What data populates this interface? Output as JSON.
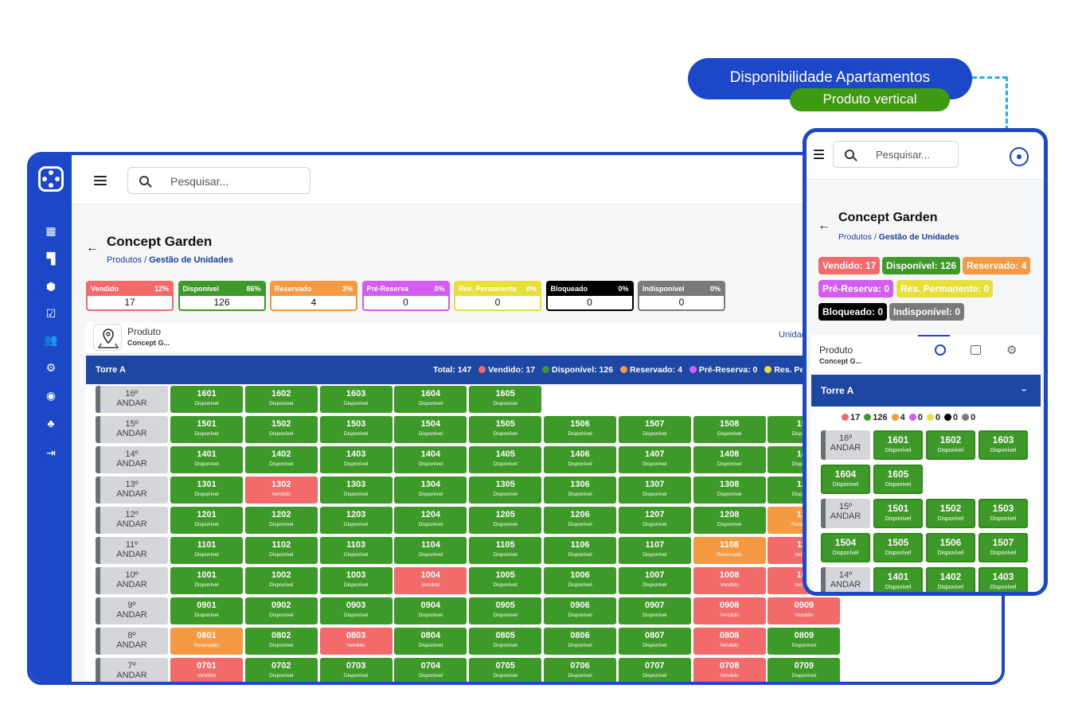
{
  "callout": {
    "title": "Disponibilidade Apartamentos",
    "subtitle": "Produto vertical"
  },
  "colors": {
    "brand": "#1d47c9",
    "header_band": "#1d47a3",
    "vendido": "#f26a6a",
    "disponivel": "#3e9a28",
    "reservado": "#f59a42",
    "pre_reserva": "#d45cf0",
    "res_permanente": "#e8e03a",
    "bloqueado": "#000000",
    "indisponivel": "#7a7a7a"
  },
  "desktop": {
    "search_placeholder": "Pesquisar...",
    "title": "Concept Garden",
    "breadcrumb": {
      "root": "Produtos",
      "sep": "/",
      "current": "Gestão de Unidades"
    },
    "stats": [
      {
        "label": "Vendido",
        "pct": "12%",
        "value": "17",
        "key": "vendido"
      },
      {
        "label": "Disponível",
        "pct": "86%",
        "value": "126",
        "key": "disponivel"
      },
      {
        "label": "Reservado",
        "pct": "3%",
        "value": "4",
        "key": "reservado"
      },
      {
        "label": "Pré-Reserva",
        "pct": "0%",
        "value": "0",
        "key": "pre_reserva"
      },
      {
        "label": "Res. Permanente",
        "pct": "0%",
        "value": "0",
        "key": "res_permanente"
      },
      {
        "label": "Bloqueado",
        "pct": "0%",
        "value": "0",
        "key": "bloqueado"
      },
      {
        "label": "Indisponível",
        "pct": "0%",
        "value": "0",
        "key": "indisponivel"
      }
    ],
    "product_label": "Produto",
    "product_name": "Concept G...",
    "units_tab": "Unidad",
    "tower": "Torre A",
    "summary": {
      "total": "Total: 147",
      "vendido": "Vendido: 17",
      "disponivel": "Disponível: 126",
      "reservado": "Reservado: 4",
      "pre_reserva": "Pré-Reserva: 0",
      "res_permanente": "Res. Perman"
    },
    "floor_word": "ANDAR",
    "floors": [
      {
        "label": "16º",
        "units": [
          [
            "1601",
            "d"
          ],
          [
            "1602",
            "d"
          ],
          [
            "1603",
            "d"
          ],
          [
            "1604",
            "d"
          ],
          [
            "1605",
            "d"
          ]
        ]
      },
      {
        "label": "15º",
        "units": [
          [
            "1501",
            "d"
          ],
          [
            "1502",
            "d"
          ],
          [
            "1503",
            "d"
          ],
          [
            "1504",
            "d"
          ],
          [
            "1505",
            "d"
          ],
          [
            "1506",
            "d"
          ],
          [
            "1507",
            "d"
          ],
          [
            "1508",
            "d"
          ],
          [
            "150",
            "d"
          ]
        ]
      },
      {
        "label": "14º",
        "units": [
          [
            "1401",
            "d"
          ],
          [
            "1402",
            "d"
          ],
          [
            "1403",
            "d"
          ],
          [
            "1404",
            "d"
          ],
          [
            "1405",
            "d"
          ],
          [
            "1406",
            "d"
          ],
          [
            "1407",
            "d"
          ],
          [
            "1408",
            "d"
          ],
          [
            "140",
            "d"
          ]
        ]
      },
      {
        "label": "13º",
        "units": [
          [
            "1301",
            "d"
          ],
          [
            "1302",
            "v"
          ],
          [
            "1303",
            "d"
          ],
          [
            "1304",
            "d"
          ],
          [
            "1305",
            "d"
          ],
          [
            "1306",
            "d"
          ],
          [
            "1307",
            "d"
          ],
          [
            "1308",
            "d"
          ],
          [
            "130",
            "d"
          ]
        ]
      },
      {
        "label": "12º",
        "units": [
          [
            "1201",
            "d"
          ],
          [
            "1202",
            "d"
          ],
          [
            "1203",
            "d"
          ],
          [
            "1204",
            "d"
          ],
          [
            "1205",
            "d"
          ],
          [
            "1206",
            "d"
          ],
          [
            "1207",
            "d"
          ],
          [
            "1208",
            "d"
          ],
          [
            "120",
            "r"
          ]
        ]
      },
      {
        "label": "11º",
        "units": [
          [
            "1101",
            "d"
          ],
          [
            "1102",
            "d"
          ],
          [
            "1103",
            "d"
          ],
          [
            "1104",
            "d"
          ],
          [
            "1105",
            "d"
          ],
          [
            "1106",
            "d"
          ],
          [
            "1107",
            "d"
          ],
          [
            "1108",
            "r"
          ],
          [
            "110",
            "v"
          ]
        ]
      },
      {
        "label": "10º",
        "units": [
          [
            "1001",
            "d"
          ],
          [
            "1002",
            "d"
          ],
          [
            "1003",
            "d"
          ],
          [
            "1004",
            "v"
          ],
          [
            "1005",
            "d"
          ],
          [
            "1006",
            "d"
          ],
          [
            "1007",
            "d"
          ],
          [
            "1008",
            "v"
          ],
          [
            "100",
            "v"
          ]
        ]
      },
      {
        "label": "9º",
        "units": [
          [
            "0901",
            "d"
          ],
          [
            "0902",
            "d"
          ],
          [
            "0903",
            "d"
          ],
          [
            "0904",
            "d"
          ],
          [
            "0905",
            "d"
          ],
          [
            "0906",
            "d"
          ],
          [
            "0907",
            "d"
          ],
          [
            "0908",
            "v"
          ],
          [
            "0909",
            "v"
          ]
        ]
      },
      {
        "label": "8º",
        "units": [
          [
            "0801",
            "r"
          ],
          [
            "0802",
            "d"
          ],
          [
            "0803",
            "v"
          ],
          [
            "0804",
            "d"
          ],
          [
            "0805",
            "d"
          ],
          [
            "0806",
            "d"
          ],
          [
            "0807",
            "d"
          ],
          [
            "0808",
            "v"
          ],
          [
            "0809",
            "d"
          ]
        ]
      },
      {
        "label": "7º",
        "units": [
          [
            "0701",
            "v"
          ],
          [
            "0702",
            "d"
          ],
          [
            "0703",
            "d"
          ],
          [
            "0704",
            "d"
          ],
          [
            "0705",
            "d"
          ],
          [
            "0706",
            "d"
          ],
          [
            "0707",
            "d"
          ],
          [
            "0708",
            "v"
          ],
          [
            "0709",
            "d"
          ]
        ]
      }
    ]
  },
  "status_text": {
    "d": "Disponível",
    "v": "Vendido",
    "r": "Reservado"
  },
  "mobile": {
    "search_placeholder": "Pesquisar...",
    "title": "Concept Garden",
    "breadcrumb": {
      "root": "Produtos",
      "sep": "/",
      "current": "Gestão de Unidades"
    },
    "badges": [
      {
        "text": "Vendido: 17",
        "key": "vendido"
      },
      {
        "text": "Disponível: 126",
        "key": "disponivel"
      },
      {
        "text": "Reservado: 4",
        "key": "reservado"
      },
      {
        "text": "Pré-Reserva: 0",
        "key": "pre_reserva"
      },
      {
        "text": "Res. Permanente: 0",
        "key": "res_permanente"
      },
      {
        "text": "Bloqueado: 0",
        "key": "bloqueado"
      },
      {
        "text": "Indisponível: 0",
        "key": "indisponivel"
      }
    ],
    "product_label": "Produto",
    "product_name": "Concept G...",
    "tower": "Torre A",
    "legend": [
      "17",
      "126",
      "4",
      "0",
      "0",
      "0",
      "0"
    ],
    "floor_word": "ANDAR",
    "floors": [
      {
        "label": "16º",
        "rows": [
          [
            [
              "1601",
              "d"
            ],
            [
              "1602",
              "d"
            ],
            [
              "1603",
              "d"
            ]
          ],
          [
            [
              "1604",
              "d"
            ],
            [
              "1605",
              "d"
            ]
          ]
        ]
      },
      {
        "label": "15º",
        "rows": [
          [
            [
              "1501",
              "d"
            ],
            [
              "1502",
              "d"
            ],
            [
              "1503",
              "d"
            ]
          ],
          [
            [
              "1504",
              "d"
            ],
            [
              "1505",
              "d"
            ],
            [
              "1506",
              "d"
            ],
            [
              "1507",
              "d"
            ]
          ]
        ]
      },
      {
        "label": "14º",
        "rows": [
          [
            [
              "1401",
              "d"
            ],
            [
              "1402",
              "d"
            ],
            [
              "1403",
              "d"
            ]
          ]
        ]
      }
    ]
  }
}
